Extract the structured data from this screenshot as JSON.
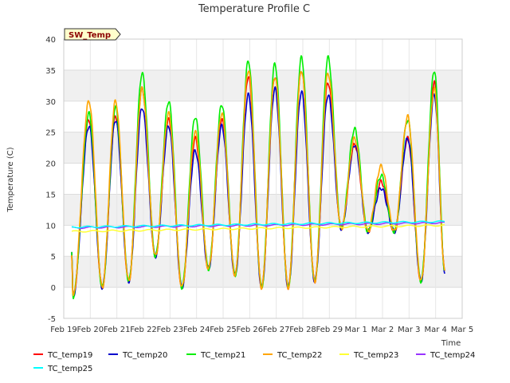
{
  "chart_data": {
    "type": "line",
    "title": "Temperature Profile C",
    "xlabel": "Time",
    "ylabel": "Temperature (C)",
    "badge": "SW_Temp",
    "ylim": [
      -5,
      40
    ],
    "yticks": [
      -5,
      0,
      5,
      10,
      15,
      20,
      25,
      30,
      35,
      40
    ],
    "xlim": [
      0,
      15
    ],
    "xticks": [
      0,
      1,
      2,
      3,
      4,
      5,
      6,
      7,
      8,
      9,
      10,
      11,
      12,
      13,
      14,
      15
    ],
    "xtick_labels": [
      "Feb 19",
      "Feb 20",
      "Feb 21",
      "Feb 22",
      "Feb 23",
      "Feb 24",
      "Feb 25",
      "Feb 26",
      "Feb 27",
      "Feb 28",
      "Feb 29",
      "Mar 1",
      "Mar 2",
      "Mar 3",
      "Mar 4",
      "Mar 5"
    ],
    "background_bands": "alternating grey between y gridlines",
    "legend_position": "bottom",
    "daily_peaks": {
      "days": [
        0.95,
        1.95,
        2.95,
        3.95,
        4.95,
        5.95,
        6.95,
        7.95,
        8.95,
        9.95,
        10.95,
        11.95,
        12.95,
        13.95
      ],
      "TC_temp19": [
        27,
        27.5,
        32,
        27,
        24,
        27,
        34,
        34,
        35,
        33,
        23,
        17,
        24,
        33
      ],
      "TC_temp20": [
        26,
        27,
        29,
        26,
        22,
        26,
        31,
        32,
        31.5,
        31,
        23,
        16,
        24,
        31
      ],
      "TC_temp21": [
        28,
        29,
        34.5,
        30,
        27.5,
        29.5,
        36.5,
        36,
        37,
        37,
        25.5,
        18,
        27,
        35
      ],
      "TC_temp22": [
        30,
        30,
        32,
        28,
        25,
        28,
        35,
        34,
        35,
        34.5,
        24,
        19.5,
        27.5,
        32
      ]
    },
    "daily_mins": {
      "days": [
        0.35,
        1.45,
        2.45,
        3.45,
        4.45,
        5.45,
        6.45,
        7.45,
        8.45,
        9.45,
        10.45,
        11.45,
        12.45,
        13.45,
        14.35
      ],
      "values": [
        -1.5,
        0,
        1,
        5,
        0,
        3,
        2,
        0,
        0,
        1,
        9.5,
        9,
        9,
        1,
        2.5
      ]
    },
    "series": [
      {
        "name": "TC_temp19",
        "color": "#ff0000",
        "kind": "diurnal"
      },
      {
        "name": "TC_temp20",
        "color": "#0000cc",
        "kind": "diurnal"
      },
      {
        "name": "TC_temp21",
        "color": "#00ee00",
        "kind": "diurnal"
      },
      {
        "name": "TC_temp22",
        "color": "#ffa500",
        "kind": "diurnal"
      },
      {
        "name": "TC_temp23",
        "color": "#ffff33",
        "kind": "flat",
        "start": 9.0,
        "end": 10.0
      },
      {
        "name": "TC_temp24",
        "color": "#9933ff",
        "kind": "flat",
        "start": 9.6,
        "end": 10.4
      },
      {
        "name": "TC_temp25",
        "color": "#00ffff",
        "kind": "flat",
        "start": 9.7,
        "end": 10.6
      }
    ]
  }
}
